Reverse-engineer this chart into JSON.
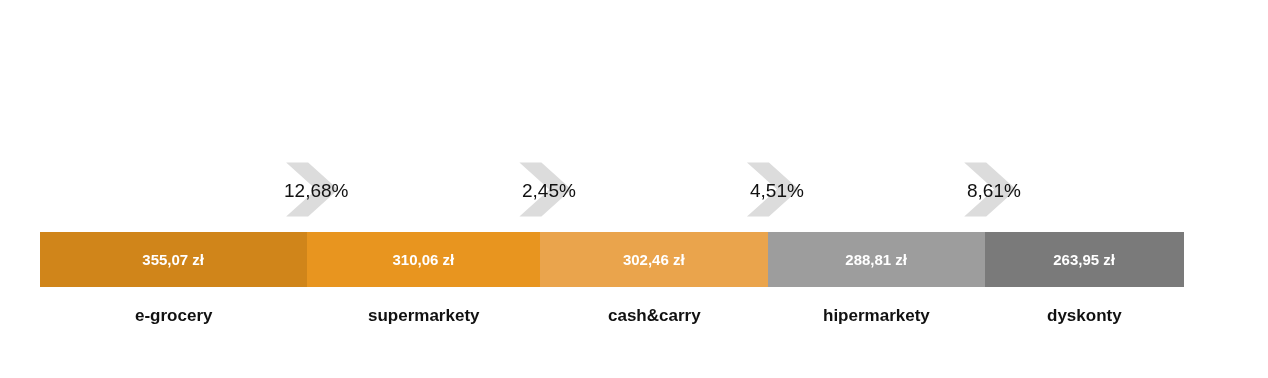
{
  "chart_data": {
    "type": "other",
    "categories": [
      "e-grocery",
      "supermarkety",
      "cash&carry",
      "hipermarkety",
      "dyskonty"
    ],
    "values": [
      355.07,
      310.06,
      302.46,
      288.81,
      263.95
    ],
    "value_labels": [
      "355,07 zł",
      "310,06 zł",
      "302,46 zł",
      "288,81 zł",
      "263,95 zł"
    ],
    "colors": [
      "#d0851a",
      "#e8951f",
      "#eaa44c",
      "#9d9d9d",
      "#7a7a7a"
    ],
    "annotations": [
      "12,68%",
      "2,45%",
      "4,51%",
      "8,61%"
    ]
  }
}
